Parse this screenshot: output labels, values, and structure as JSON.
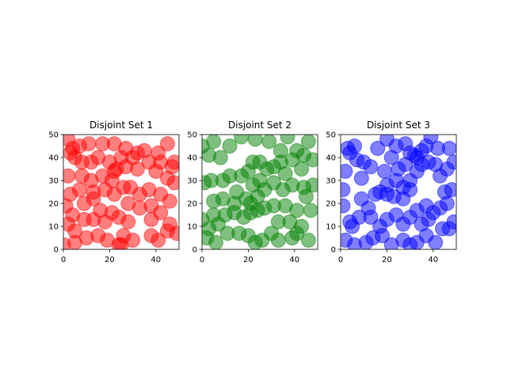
{
  "chart_data": [
    {
      "type": "scatter",
      "title": "Disjoint Set 1",
      "color": "#ff0000",
      "xlim": [
        0,
        50
      ],
      "ylim": [
        0,
        50
      ],
      "xticks": [
        "0",
        "20",
        "40"
      ],
      "yticks": [
        "0",
        "10",
        "20",
        "30",
        "40",
        "50"
      ],
      "points": [
        [
          2,
          48
        ],
        [
          4,
          44
        ],
        [
          3,
          42
        ],
        [
          7,
          45
        ],
        [
          11,
          46
        ],
        [
          17,
          46
        ],
        [
          22,
          46
        ],
        [
          27,
          44
        ],
        [
          32,
          42
        ],
        [
          35,
          43
        ],
        [
          41,
          42
        ],
        [
          45,
          46
        ],
        [
          48,
          38
        ],
        [
          47,
          36
        ],
        [
          42,
          38
        ],
        [
          37,
          38
        ],
        [
          30,
          40
        ],
        [
          25,
          40
        ],
        [
          20,
          38
        ],
        [
          15,
          40
        ],
        [
          12,
          38
        ],
        [
          8,
          38
        ],
        [
          5,
          40
        ],
        [
          2,
          32
        ],
        [
          8,
          32
        ],
        [
          12,
          30
        ],
        [
          17,
          32
        ],
        [
          21,
          30
        ],
        [
          23,
          35
        ],
        [
          22,
          34
        ],
        [
          27,
          36
        ],
        [
          32,
          35
        ],
        [
          40,
          34
        ],
        [
          45,
          31
        ],
        [
          48,
          29
        ],
        [
          46,
          21
        ],
        [
          42,
          24
        ],
        [
          37,
          26
        ],
        [
          33,
          24
        ],
        [
          29,
          27
        ],
        [
          26,
          27
        ],
        [
          22,
          24
        ],
        [
          18,
          26
        ],
        [
          13,
          25
        ],
        [
          7,
          26
        ],
        [
          3,
          24
        ],
        [
          1,
          19
        ],
        [
          4,
          15
        ],
        [
          9,
          13
        ],
        [
          13,
          13
        ],
        [
          16,
          17
        ],
        [
          21,
          16
        ],
        [
          24,
          14
        ],
        [
          28,
          20
        ],
        [
          33,
          18
        ],
        [
          38,
          19
        ],
        [
          42,
          16
        ],
        [
          46,
          11
        ],
        [
          49,
          7
        ],
        [
          45,
          8
        ],
        [
          41,
          4
        ],
        [
          38,
          6
        ],
        [
          30,
          4
        ],
        [
          26,
          6
        ],
        [
          24,
          2
        ],
        [
          19,
          4
        ],
        [
          15,
          6
        ],
        [
          10,
          5
        ],
        [
          5,
          8
        ],
        [
          2,
          11
        ],
        [
          0,
          2
        ],
        [
          5,
          3
        ],
        [
          13,
          22
        ],
        [
          18,
          12
        ],
        [
          9,
          20
        ],
        [
          28,
          12
        ],
        [
          38,
          13
        ],
        [
          25,
          2
        ]
      ]
    },
    {
      "type": "scatter",
      "title": "Disjoint Set 2",
      "color": "#008000",
      "xlim": [
        0,
        50
      ],
      "ylim": [
        0,
        50
      ],
      "xticks": [
        "0",
        "20",
        "40"
      ],
      "yticks": [
        "0",
        "10",
        "20",
        "30",
        "40",
        "50"
      ],
      "points": [
        [
          0,
          45
        ],
        [
          5,
          47
        ],
        [
          3,
          41
        ],
        [
          8,
          40
        ],
        [
          12,
          45
        ],
        [
          17,
          49
        ],
        [
          23,
          48
        ],
        [
          29,
          47
        ],
        [
          34,
          43
        ],
        [
          37,
          49
        ],
        [
          41,
          43
        ],
        [
          46,
          47
        ],
        [
          48,
          39
        ],
        [
          43,
          35
        ],
        [
          39,
          39
        ],
        [
          34,
          38
        ],
        [
          31,
          36
        ],
        [
          28,
          35
        ],
        [
          25,
          38
        ],
        [
          22,
          38
        ],
        [
          20,
          34
        ],
        [
          17,
          32
        ],
        [
          12,
          32
        ],
        [
          9,
          30
        ],
        [
          4,
          30
        ],
        [
          1,
          29
        ],
        [
          5,
          21
        ],
        [
          9,
          22
        ],
        [
          14,
          20
        ],
        [
          19,
          22
        ],
        [
          21,
          20
        ],
        [
          24,
          23
        ],
        [
          27,
          26
        ],
        [
          25,
          30
        ],
        [
          22,
          28
        ],
        [
          31,
          29
        ],
        [
          35,
          26
        ],
        [
          39,
          28
        ],
        [
          44,
          27
        ],
        [
          48,
          28
        ],
        [
          45,
          23
        ],
        [
          41,
          17
        ],
        [
          36,
          19
        ],
        [
          31,
          19
        ],
        [
          27,
          18
        ],
        [
          24,
          17
        ],
        [
          21,
          16
        ],
        [
          18,
          14
        ],
        [
          14,
          16
        ],
        [
          10,
          15
        ],
        [
          5,
          15
        ],
        [
          0,
          13
        ],
        [
          3,
          9
        ],
        [
          2,
          5
        ],
        [
          6,
          3
        ],
        [
          11,
          7
        ],
        [
          16,
          7
        ],
        [
          20,
          6
        ],
        [
          23,
          3
        ],
        [
          26,
          4
        ],
        [
          30,
          7
        ],
        [
          33,
          12
        ],
        [
          38,
          12
        ],
        [
          41,
          7
        ],
        [
          43,
          10
        ],
        [
          46,
          4
        ],
        [
          47,
          17
        ],
        [
          39,
          5
        ],
        [
          33,
          4
        ],
        [
          7,
          11
        ],
        [
          15,
          25
        ],
        [
          44,
          41
        ],
        [
          36,
          33
        ]
      ]
    },
    {
      "type": "scatter",
      "title": "Disjoint Set 3",
      "color": "#0000ff",
      "xlim": [
        0,
        50
      ],
      "ylim": [
        0,
        50
      ],
      "xticks": [
        "0",
        "20",
        "40"
      ],
      "yticks": [
        "0",
        "10",
        "20",
        "30",
        "40",
        "50"
      ],
      "points": [
        [
          3,
          44
        ],
        [
          6,
          45
        ],
        [
          4,
          42
        ],
        [
          7,
          39
        ],
        [
          10,
          38
        ],
        [
          13,
          36
        ],
        [
          16,
          44
        ],
        [
          20,
          48
        ],
        [
          24,
          45
        ],
        [
          28,
          46
        ],
        [
          30,
          42
        ],
        [
          33,
          40
        ],
        [
          35,
          43
        ],
        [
          37,
          45
        ],
        [
          39,
          49
        ],
        [
          42,
          44
        ],
        [
          47,
          44
        ],
        [
          49,
          38
        ],
        [
          46,
          35
        ],
        [
          43,
          32
        ],
        [
          41,
          37
        ],
        [
          38,
          38
        ],
        [
          35,
          37
        ],
        [
          32,
          41
        ],
        [
          28,
          37
        ],
        [
          25,
          35
        ],
        [
          22,
          40
        ],
        [
          19,
          34
        ],
        [
          17,
          25
        ],
        [
          20,
          28
        ],
        [
          24,
          30
        ],
        [
          27,
          27
        ],
        [
          30,
          30
        ],
        [
          33,
          34
        ],
        [
          30,
          26
        ],
        [
          27,
          22
        ],
        [
          23,
          23
        ],
        [
          20,
          24
        ],
        [
          15,
          24
        ],
        [
          12,
          18
        ],
        [
          8,
          14
        ],
        [
          4,
          12
        ],
        [
          1,
          19
        ],
        [
          1,
          26
        ],
        [
          2,
          34
        ],
        [
          9,
          22
        ],
        [
          13,
          14
        ],
        [
          17,
          10
        ],
        [
          20,
          13
        ],
        [
          24,
          15
        ],
        [
          27,
          11
        ],
        [
          30,
          14
        ],
        [
          33,
          17
        ],
        [
          35,
          11
        ],
        [
          38,
          13
        ],
        [
          40,
          16
        ],
        [
          43,
          18
        ],
        [
          46,
          20
        ],
        [
          49,
          12
        ],
        [
          47,
          9
        ],
        [
          44,
          9
        ],
        [
          41,
          3
        ],
        [
          37,
          6
        ],
        [
          33,
          3
        ],
        [
          30,
          2
        ],
        [
          27,
          4
        ],
        [
          22,
          2
        ],
        [
          18,
          6
        ],
        [
          14,
          5
        ],
        [
          11,
          3
        ],
        [
          6,
          2
        ],
        [
          2,
          4
        ],
        [
          5,
          10
        ],
        [
          45,
          25
        ],
        [
          48,
          26
        ],
        [
          37,
          19
        ],
        [
          9,
          31
        ]
      ]
    }
  ]
}
